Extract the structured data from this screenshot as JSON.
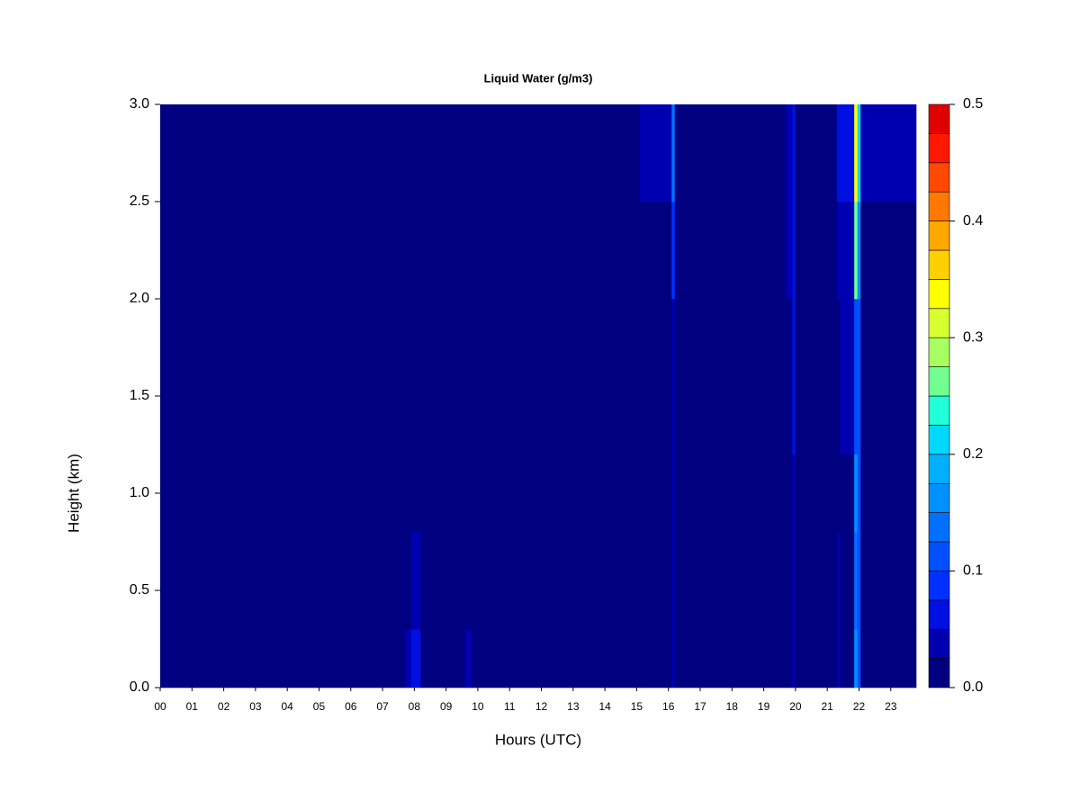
{
  "chart_data": {
    "type": "heatmap",
    "title": "Liquid Water (g/m3)",
    "xlabel": "Hours (UTC)",
    "ylabel": "Height (km)",
    "xlim": [
      0,
      23.8
    ],
    "ylim": [
      0,
      3
    ],
    "xticks": [
      {
        "value": 0,
        "label": "00"
      },
      {
        "value": 1,
        "label": "01"
      },
      {
        "value": 2,
        "label": "02"
      },
      {
        "value": 3,
        "label": "03"
      },
      {
        "value": 4,
        "label": "04"
      },
      {
        "value": 5,
        "label": "05"
      },
      {
        "value": 6,
        "label": "06"
      },
      {
        "value": 7,
        "label": "07"
      },
      {
        "value": 8,
        "label": "08"
      },
      {
        "value": 9,
        "label": "09"
      },
      10,
      11,
      12,
      13,
      14,
      15,
      16,
      17,
      18,
      19,
      20,
      21,
      22,
      23
    ],
    "yticks": [
      {
        "value": 0,
        "label": "0.0"
      },
      {
        "value": 0.5,
        "label": "0.5"
      },
      {
        "value": 1,
        "label": "1.0"
      },
      {
        "value": 1.5,
        "label": "1.5"
      },
      {
        "value": 2,
        "label": "2.0"
      },
      {
        "value": 2.5,
        "label": "2.5"
      },
      {
        "value": 3,
        "label": "3.0"
      }
    ],
    "xbins": [
      0,
      7.7,
      7.9,
      8.2,
      9.6,
      9.8,
      15.1,
      16.1,
      16.2,
      19.7,
      19.9,
      20.0,
      21.3,
      21.4,
      21.85,
      21.95,
      22.05,
      23.8
    ],
    "ybins": [
      0,
      0.3,
      0.8,
      1.2,
      2.0,
      2.5,
      3.0
    ],
    "values": [
      [
        0.01,
        0.04,
        0.05,
        0.01,
        0.04,
        0.01,
        0.01,
        0.03,
        0.01,
        0.02,
        0.03,
        0.01,
        0.03,
        0.02,
        0.16,
        0.12,
        0.02
      ],
      [
        0.01,
        0.02,
        0.03,
        0.01,
        0.02,
        0.01,
        0.01,
        0.03,
        0.01,
        0.02,
        0.03,
        0.01,
        0.03,
        0.02,
        0.14,
        0.1,
        0.02
      ],
      [
        0.01,
        0.01,
        0.01,
        0.01,
        0.01,
        0.01,
        0.01,
        0.03,
        0.01,
        0.02,
        0.04,
        0.01,
        0.02,
        0.02,
        0.15,
        0.1,
        0.01
      ],
      [
        0.01,
        0.01,
        0.01,
        0.01,
        0.01,
        0.01,
        0.01,
        0.04,
        0.01,
        0.02,
        0.05,
        0.01,
        0.02,
        0.03,
        0.12,
        0.1,
        0.01
      ],
      [
        0.01,
        0.01,
        0.01,
        0.01,
        0.01,
        0.01,
        0.02,
        0.08,
        0.01,
        0.03,
        0.06,
        0.01,
        0.03,
        0.04,
        0.25,
        0.15,
        0.02
      ],
      [
        0.01,
        0.01,
        0.01,
        0.01,
        0.01,
        0.01,
        0.03,
        0.14,
        0.02,
        0.04,
        0.07,
        0.02,
        0.05,
        0.05,
        0.33,
        0.22,
        0.04
      ]
    ],
    "levels": [
      0,
      0.025,
      0.05,
      0.075,
      0.1,
      0.125,
      0.15,
      0.175,
      0.2,
      0.225,
      0.25,
      0.275,
      0.3,
      0.325,
      0.35,
      0.375,
      0.4,
      0.425,
      0.45,
      0.475,
      0.5
    ],
    "colors": [
      "#000080",
      "#0000b0",
      "#0010e0",
      "#0030ff",
      "#0050ff",
      "#0070ff",
      "#0090ff",
      "#00b0ff",
      "#00d8ff",
      "#20ffd8",
      "#70ff90",
      "#a8ff60",
      "#d8ff30",
      "#ffff00",
      "#ffd000",
      "#ffa800",
      "#ff7800",
      "#ff4800",
      "#ff1800",
      "#e00000",
      "#800000"
    ],
    "colorbar_ticks": [
      {
        "value": 0,
        "label": "0.0"
      },
      {
        "value": 0.1,
        "label": "0.1"
      },
      {
        "value": 0.2,
        "label": "0.2"
      },
      {
        "value": 0.3,
        "label": "0.3"
      },
      {
        "value": 0.4,
        "label": "0.4"
      },
      {
        "value": 0.5,
        "label": "0.5"
      }
    ]
  }
}
